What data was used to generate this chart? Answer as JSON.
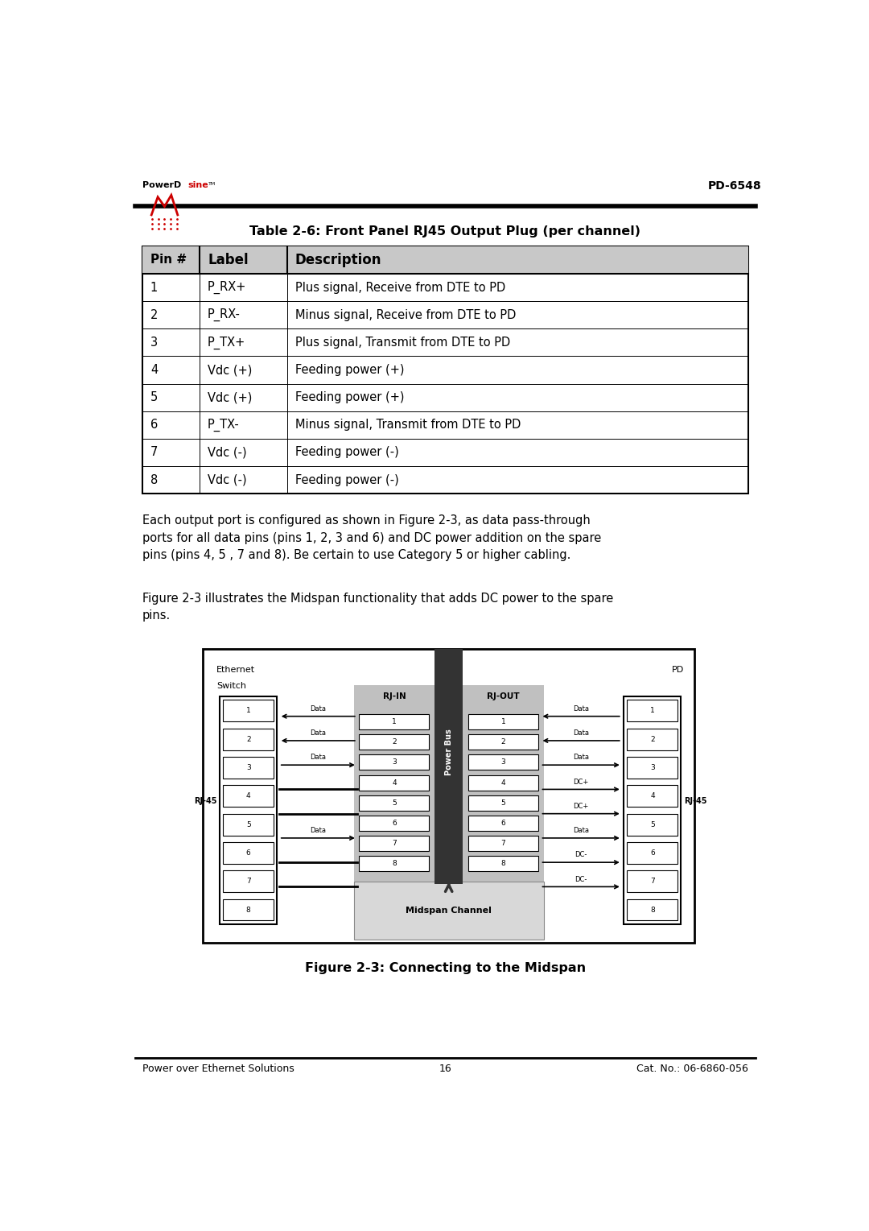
{
  "page_width": 10.8,
  "page_height": 15.29,
  "bg_color": "#ffffff",
  "model_number": "PD-6548",
  "table_title": "Table 2-6: Front Panel RJ45 Output Plug (per channel)",
  "table_headers": [
    "Pin #",
    "Label",
    "Description"
  ],
  "table_rows": [
    [
      "1",
      "P_RX+",
      "Plus signal, Receive from DTE to PD"
    ],
    [
      "2",
      "P_RX-",
      "Minus signal, Receive from DTE to PD"
    ],
    [
      "3",
      "P_TX+",
      "Plus signal, Transmit from DTE to PD"
    ],
    [
      "4",
      "Vdc (+)",
      "Feeding power (+)"
    ],
    [
      "5",
      "Vdc (+)",
      "Feeding power (+)"
    ],
    [
      "6",
      "P_TX-",
      "Minus signal, Transmit from DTE to PD"
    ],
    [
      "7",
      "Vdc (-)",
      "Feeding power (-)"
    ],
    [
      "8",
      "Vdc (-)",
      "Feeding power (-)"
    ]
  ],
  "para1": "Each output port is configured as shown in Figure 2-3, as data pass-through\nports for all data pins (pins 1, 2, 3 and 6) and DC power addition on the spare\npins (pins 4, 5 , 7 and 8). Be certain to use Category 5 or higher cabling.",
  "para2": "Figure 2-3 illustrates the Midspan functionality that adds DC power to the spare\npins.",
  "fig_caption": "Figure 2-3: Connecting to the Midspan",
  "footer_left": "Power over Ethernet Solutions",
  "footer_center": "16",
  "footer_right": "Cat. No.: 06-6860-056"
}
